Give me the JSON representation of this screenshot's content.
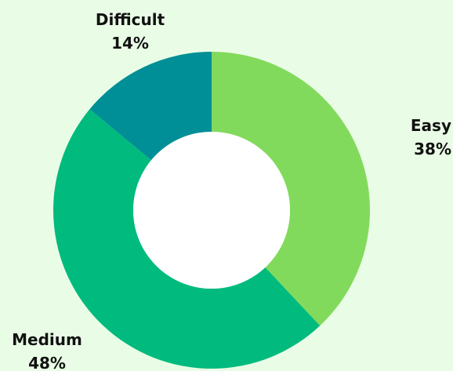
{
  "chart_data": {
    "type": "pie",
    "variant": "donut",
    "title": "",
    "slices": [
      {
        "label": "Easy",
        "value": 38,
        "display": "38%",
        "color": "#82da5c"
      },
      {
        "label": "Medium",
        "value": 48,
        "display": "48%",
        "color": "#00bb7d"
      },
      {
        "label": "Difficult",
        "value": 14,
        "display": "14%",
        "color": "#008f96"
      }
    ],
    "start_angle": "12 o'clock",
    "direction": "clockwise",
    "legend": "none",
    "background": "#e9fde6",
    "hole_color": "#ffffff"
  }
}
